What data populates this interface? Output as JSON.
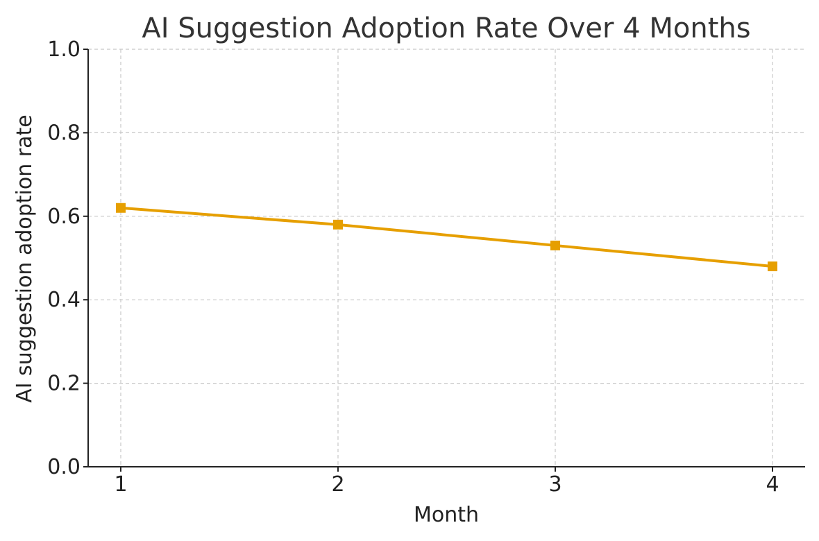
{
  "chart_data": {
    "type": "line",
    "title": "AI Suggestion Adoption Rate Over 4 Months",
    "xlabel": "Month",
    "ylabel": "AI suggestion adoption rate",
    "x": [
      1,
      2,
      3,
      4
    ],
    "x_tick_labels": [
      "1",
      "2",
      "3",
      "4"
    ],
    "ylim": [
      0,
      1
    ],
    "y_ticks": [
      0.0,
      0.2,
      0.4,
      0.6,
      0.8,
      1.0
    ],
    "y_tick_labels": [
      "0.0",
      "0.2",
      "0.4",
      "0.6",
      "0.8",
      "1.0"
    ],
    "grid": true,
    "series": [
      {
        "values": [
          0.62,
          0.58,
          0.53,
          0.48
        ],
        "color": "#E69F00",
        "marker": "square"
      }
    ]
  }
}
